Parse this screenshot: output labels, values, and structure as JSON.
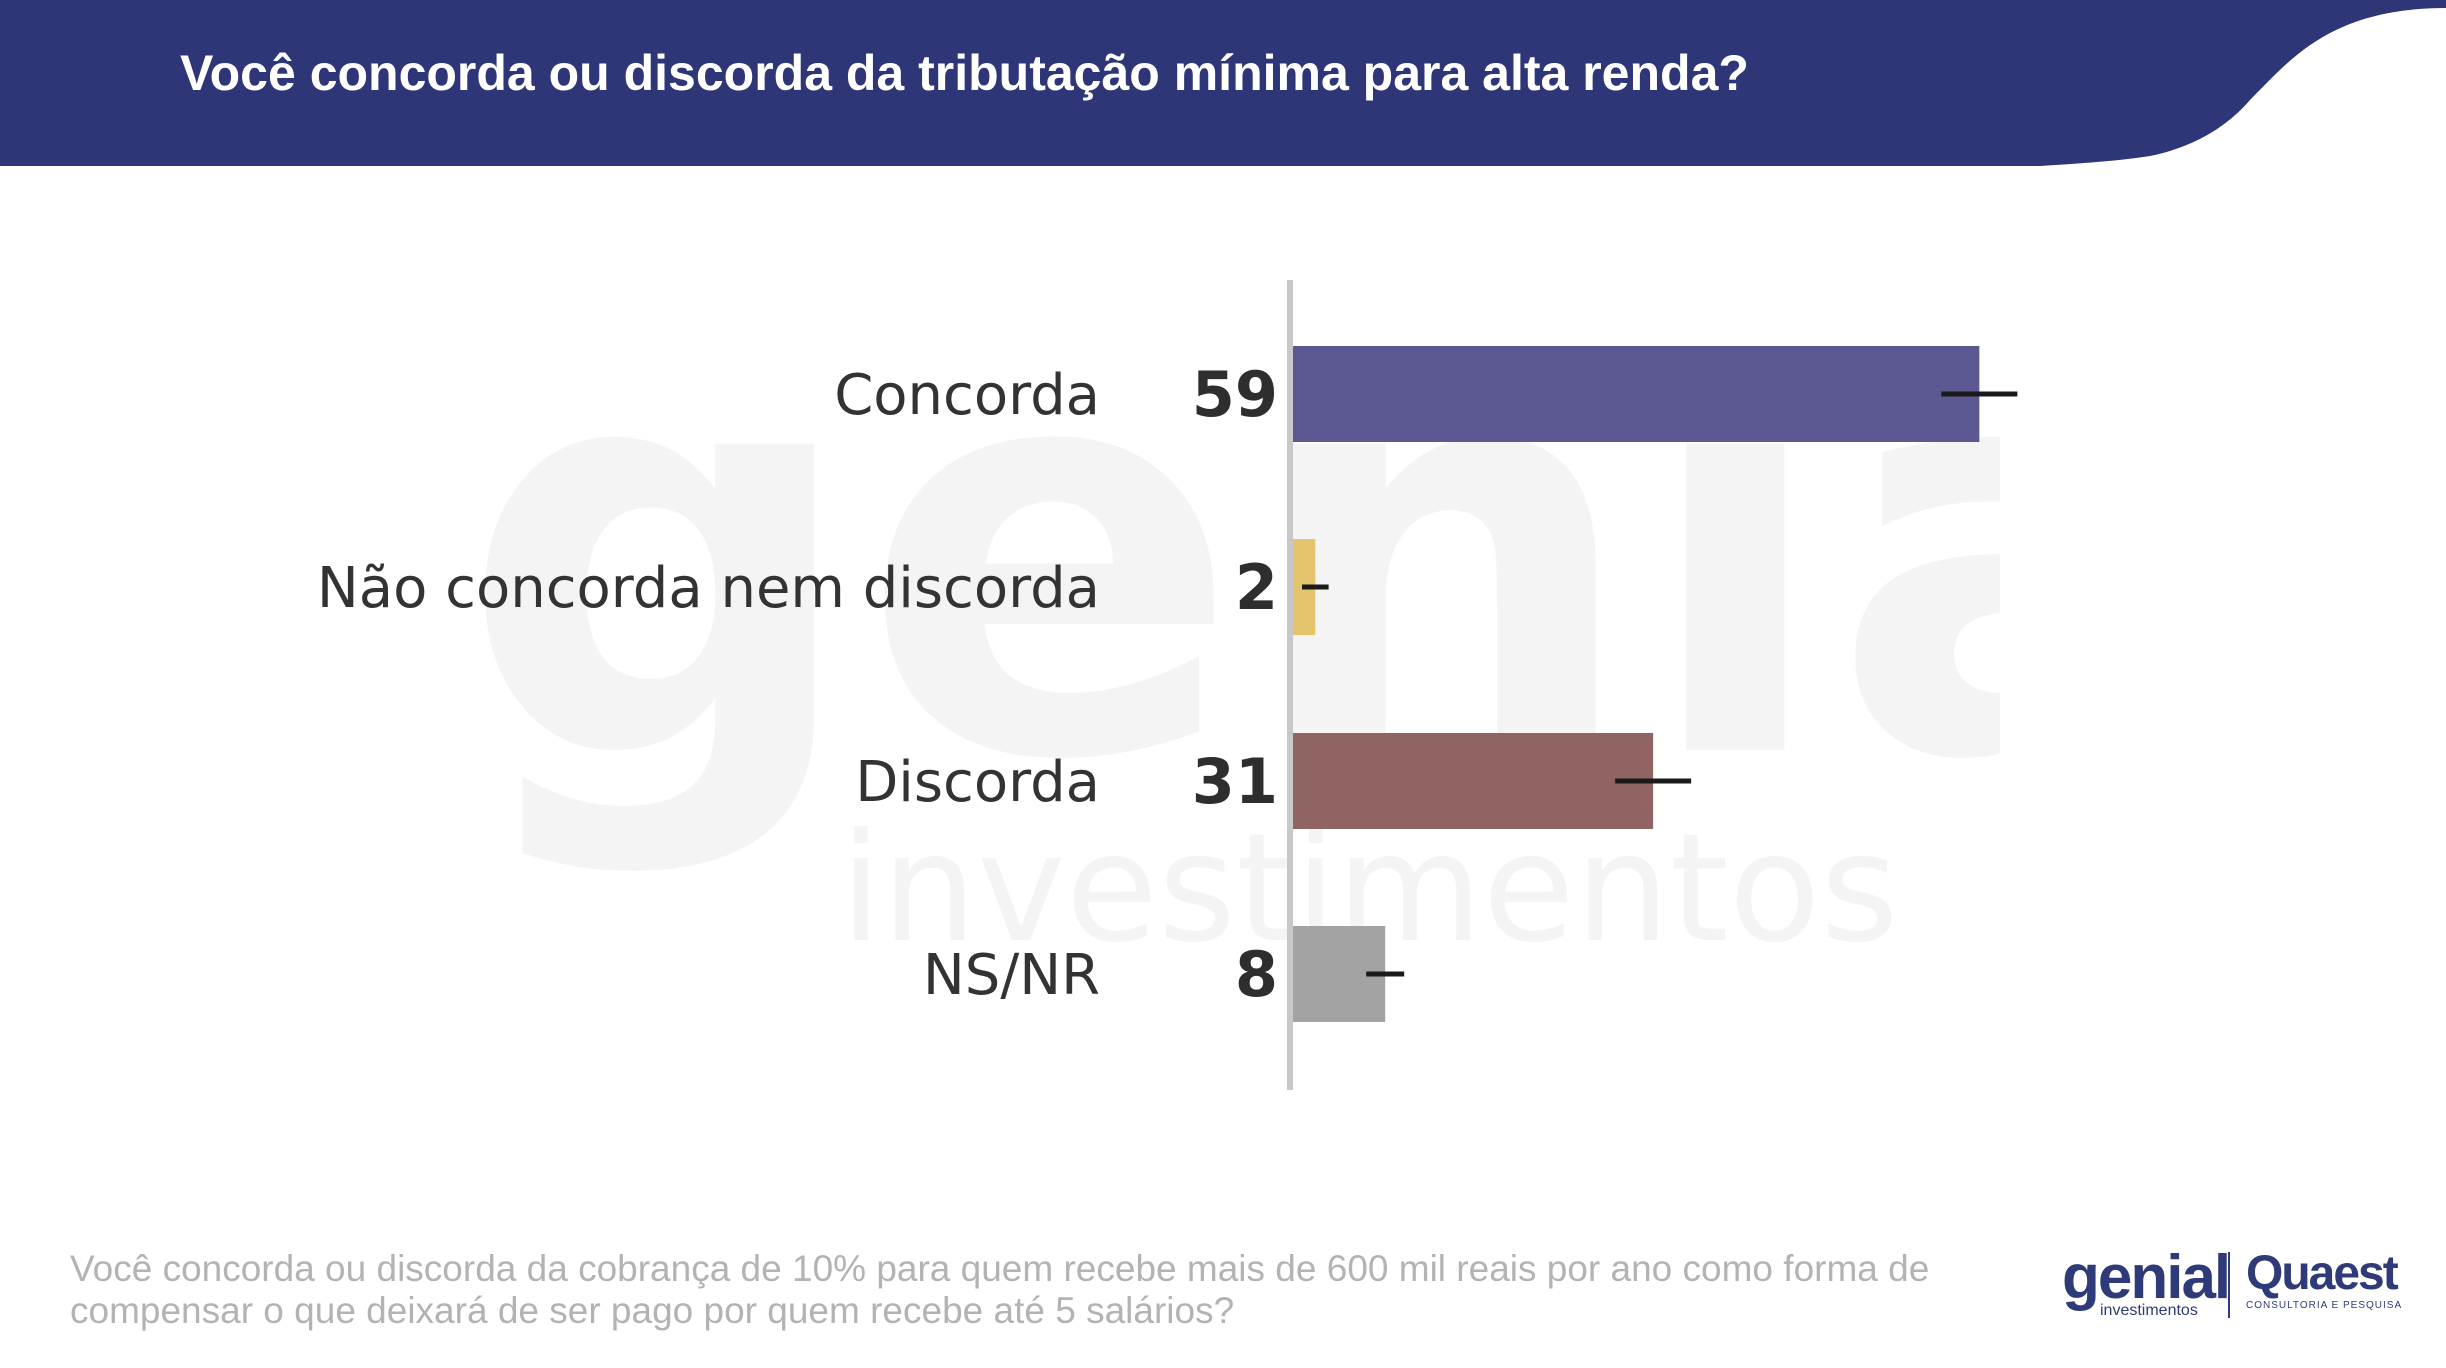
{
  "header": {
    "title": "Você concorda ou discorda da tributação mínima para alta renda?",
    "background_color": "#2e3677"
  },
  "chart_data": {
    "type": "bar",
    "orientation": "horizontal",
    "title": "Você concorda ou discorda da tributação mínima para alta renda?",
    "categories": [
      "Concorda",
      "Não concorda nem discorda",
      "Discorda",
      "NS/NR"
    ],
    "values": [
      59,
      2,
      31,
      8
    ],
    "value_labels": [
      "59",
      "2",
      "31",
      "8"
    ],
    "colors": [
      "#5c5892",
      "#e5c46e",
      "#8f6462",
      "#a3a3a3"
    ],
    "error_bar": "margin of error marker at each bar end",
    "xlim": [
      0,
      100
    ],
    "grid": false,
    "legend": "none"
  },
  "footnote": {
    "text": "Você concorda ou discorda da cobrança de 10% para quem recebe mais de 600 mil reais por ano como forma de compensar o que deixará de ser pago por quem recebe até 5 salários?"
  },
  "watermark": {
    "logo_text": "genial",
    "sub_text": "investimentos"
  },
  "logos": {
    "genial_text": "genial",
    "genial_sub": "investimentos",
    "quaest_text": "Quaest",
    "quaest_sub": "CONSULTORIA E PESQUISA",
    "color": "#2f3b78"
  }
}
